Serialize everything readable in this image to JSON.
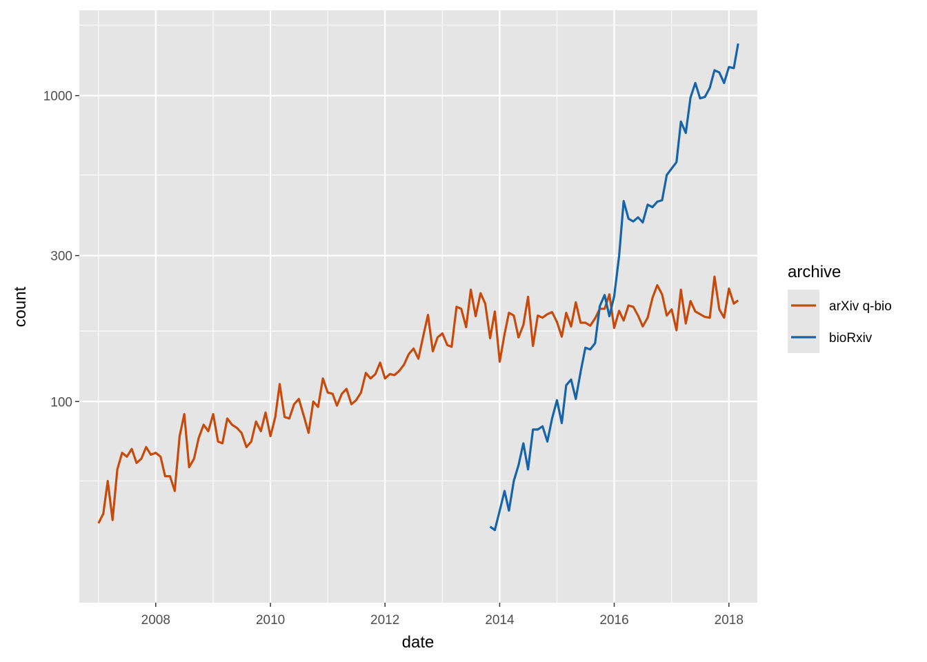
{
  "chart_data": {
    "type": "line",
    "xlabel": "date",
    "ylabel": "count",
    "x_scale": "date",
    "y_scale": "log10",
    "xlim": [
      "2006-09-01",
      "2018-07-01"
    ],
    "ylim": [
      22,
      1900
    ],
    "x_ticks": [
      {
        "value": "2008-01-01",
        "label": "2008"
      },
      {
        "value": "2010-01-01",
        "label": "2010"
      },
      {
        "value": "2012-01-01",
        "label": "2012"
      },
      {
        "value": "2014-01-01",
        "label": "2014"
      },
      {
        "value": "2016-01-01",
        "label": "2016"
      },
      {
        "value": "2018-01-01",
        "label": "2018"
      }
    ],
    "y_ticks": [
      {
        "value": 100,
        "label": "100"
      },
      {
        "value": 300,
        "label": "300"
      },
      {
        "value": 1000,
        "label": "1000"
      }
    ],
    "y_minor_ticks": [
      55,
      170,
      550,
      1700
    ],
    "grid": true,
    "background": "#e5e5e5",
    "legend": {
      "title": "archive",
      "placement": "right"
    },
    "series": [
      {
        "name": "arXiv q-bio",
        "color": "#c84a0a",
        "x": [
          "2007-01-01",
          "2007-02-01",
          "2007-03-01",
          "2007-04-01",
          "2007-05-01",
          "2007-06-01",
          "2007-07-01",
          "2007-08-01",
          "2007-09-01",
          "2007-10-01",
          "2007-11-01",
          "2007-12-01",
          "2008-01-01",
          "2008-02-01",
          "2008-03-01",
          "2008-04-01",
          "2008-05-01",
          "2008-06-01",
          "2008-07-01",
          "2008-08-01",
          "2008-09-01",
          "2008-10-01",
          "2008-11-01",
          "2008-12-01",
          "2009-01-01",
          "2009-02-01",
          "2009-03-01",
          "2009-04-01",
          "2009-05-01",
          "2009-06-01",
          "2009-07-01",
          "2009-08-01",
          "2009-09-01",
          "2009-10-01",
          "2009-11-01",
          "2009-12-01",
          "2010-01-01",
          "2010-02-01",
          "2010-03-01",
          "2010-04-01",
          "2010-05-01",
          "2010-06-01",
          "2010-07-01",
          "2010-08-01",
          "2010-09-01",
          "2010-10-01",
          "2010-11-01",
          "2010-12-01",
          "2011-01-01",
          "2011-02-01",
          "2011-03-01",
          "2011-04-01",
          "2011-05-01",
          "2011-06-01",
          "2011-07-01",
          "2011-08-01",
          "2011-09-01",
          "2011-10-01",
          "2011-11-01",
          "2011-12-01",
          "2012-01-01",
          "2012-02-01",
          "2012-03-01",
          "2012-04-01",
          "2012-05-01",
          "2012-06-01",
          "2012-07-01",
          "2012-08-01",
          "2012-09-01",
          "2012-10-01",
          "2012-11-01",
          "2012-12-01",
          "2013-01-01",
          "2013-02-01",
          "2013-03-01",
          "2013-04-01",
          "2013-05-01",
          "2013-06-01",
          "2013-07-01",
          "2013-08-01",
          "2013-09-01",
          "2013-10-01",
          "2013-11-01",
          "2013-12-01",
          "2014-01-01",
          "2014-02-01",
          "2014-03-01",
          "2014-04-01",
          "2014-05-01",
          "2014-06-01",
          "2014-07-01",
          "2014-08-01",
          "2014-09-01",
          "2014-10-01",
          "2014-11-01",
          "2014-12-01",
          "2015-01-01",
          "2015-02-01",
          "2015-03-01",
          "2015-04-01",
          "2015-05-01",
          "2015-06-01",
          "2015-07-01",
          "2015-08-01",
          "2015-09-01",
          "2015-10-01",
          "2015-11-01",
          "2015-12-01",
          "2016-01-01",
          "2016-02-01",
          "2016-03-01",
          "2016-04-01",
          "2016-05-01",
          "2016-06-01",
          "2016-07-01",
          "2016-08-01",
          "2016-09-01",
          "2016-10-01",
          "2016-11-01",
          "2016-12-01",
          "2017-01-01",
          "2017-02-01",
          "2017-03-01",
          "2017-04-01",
          "2017-05-01",
          "2017-06-01",
          "2017-07-01",
          "2017-08-01",
          "2017-09-01",
          "2017-10-01",
          "2017-11-01",
          "2017-12-01",
          "2018-01-01",
          "2018-02-01",
          "2018-03-01"
        ],
        "values": [
          40,
          43,
          55,
          41,
          60,
          68,
          66,
          70,
          63,
          65,
          71,
          67,
          68,
          66,
          57,
          57,
          51,
          77,
          91,
          61,
          65,
          76,
          84,
          80,
          91,
          74,
          73,
          88,
          84,
          82,
          79,
          71,
          74,
          86,
          80,
          92,
          77,
          89,
          114,
          89,
          88,
          98,
          102,
          90,
          79,
          100,
          96,
          119,
          107,
          106,
          97,
          106,
          110,
          98,
          101,
          107,
          124,
          119,
          123,
          134,
          119,
          123,
          122,
          126,
          132,
          143,
          149,
          138,
          164,
          192,
          146,
          162,
          167,
          153,
          151,
          204,
          201,
          175,
          232,
          190,
          226,
          209,
          161,
          197,
          135,
          166,
          195,
          191,
          162,
          178,
          220,
          152,
          191,
          188,
          193,
          196,
          182,
          163,
          195,
          176,
          211,
          181,
          181,
          177,
          187,
          201,
          201,
          224,
          174,
          198,
          184,
          206,
          204,
          191,
          176,
          188,
          218,
          240,
          224,
          191,
          200,
          171,
          232,
          180,
          213,
          197,
          193,
          189,
          188,
          256,
          200,
          188,
          234,
          209,
          214
        ]
      },
      {
        "name": "bioRxiv",
        "color": "#1563a8",
        "x": [
          "2013-11-01",
          "2013-12-01",
          "2014-01-01",
          "2014-02-01",
          "2014-03-01",
          "2014-04-01",
          "2014-05-01",
          "2014-06-01",
          "2014-07-01",
          "2014-08-01",
          "2014-09-01",
          "2014-10-01",
          "2014-11-01",
          "2014-12-01",
          "2015-01-01",
          "2015-02-01",
          "2015-03-01",
          "2015-04-01",
          "2015-05-01",
          "2015-06-01",
          "2015-07-01",
          "2015-08-01",
          "2015-09-01",
          "2015-10-01",
          "2015-11-01",
          "2015-12-01",
          "2016-01-01",
          "2016-02-01",
          "2016-03-01",
          "2016-04-01",
          "2016-05-01",
          "2016-06-01",
          "2016-07-01",
          "2016-08-01",
          "2016-09-01",
          "2016-10-01",
          "2016-11-01",
          "2016-12-01",
          "2017-01-01",
          "2017-02-01",
          "2017-03-01",
          "2017-04-01",
          "2017-05-01",
          "2017-06-01",
          "2017-07-01",
          "2017-08-01",
          "2017-09-01",
          "2017-10-01",
          "2017-11-01",
          "2017-12-01",
          "2018-01-01",
          "2018-02-01",
          "2018-03-01"
        ],
        "values": [
          39,
          38,
          44,
          51,
          44,
          55,
          62,
          73,
          60,
          81,
          81,
          83,
          74,
          88,
          101,
          85,
          113,
          118,
          102,
          125,
          150,
          148,
          155,
          205,
          223,
          190,
          221,
          299,
          452,
          396,
          388,
          400,
          385,
          440,
          432,
          450,
          455,
          550,
          578,
          606,
          822,
          755,
          985,
          1100,
          980,
          990,
          1060,
          1210,
          1190,
          1100,
          1240,
          1230,
          1480
        ]
      }
    ]
  }
}
